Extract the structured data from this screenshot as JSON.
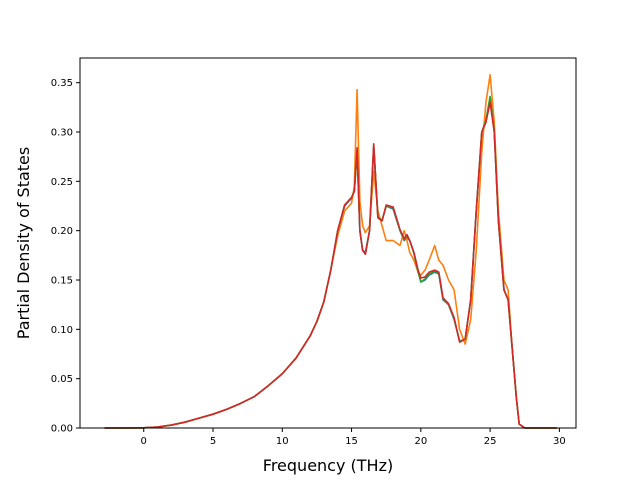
{
  "chart_data": {
    "type": "line",
    "title": "",
    "xlabel": "Frequency (THz)",
    "ylabel": "Partial Density of States",
    "xlim": [
      -4.6,
      31.2
    ],
    "ylim": [
      0.0,
      0.375
    ],
    "xticks": [
      0,
      5,
      10,
      15,
      20,
      25,
      30
    ],
    "xtick_labels": [
      "0",
      "5",
      "10",
      "15",
      "20",
      "25",
      "30"
    ],
    "yticks": [
      0.0,
      0.05,
      0.1,
      0.15,
      0.2,
      0.25,
      0.3,
      0.35
    ],
    "ytick_labels": [
      "0.00",
      "0.05",
      "0.10",
      "0.15",
      "0.20",
      "0.25",
      "0.30",
      "0.35"
    ],
    "grid": false,
    "legend": "none",
    "series": [
      {
        "color": "#1f77b4",
        "x": [
          -2.8,
          -1,
          0,
          1,
          2,
          3,
          4,
          5,
          6,
          7,
          8,
          9,
          10,
          11,
          12,
          12.5,
          13,
          13.5,
          14,
          14.5,
          15,
          15.2,
          15.4,
          15.6,
          15.8,
          16,
          16.3,
          16.6,
          16.9,
          17.2,
          17.5,
          18,
          18.5,
          18.8,
          19,
          19.2,
          19.5,
          19.8,
          20,
          20.3,
          20.6,
          21,
          21.3,
          21.6,
          22,
          22.4,
          22.8,
          23.2,
          23.6,
          24,
          24.4,
          24.7,
          25,
          25.3,
          25.6,
          26,
          26.3,
          26.6,
          26.9,
          27.1,
          27.5,
          28,
          29.8
        ],
        "values": [
          0.0,
          0.0,
          0.0002,
          0.001,
          0.003,
          0.006,
          0.01,
          0.014,
          0.019,
          0.025,
          0.032,
          0.043,
          0.055,
          0.071,
          0.093,
          0.108,
          0.128,
          0.16,
          0.2,
          0.225,
          0.233,
          0.24,
          0.28,
          0.2,
          0.18,
          0.178,
          0.2,
          0.285,
          0.215,
          0.21,
          0.225,
          0.222,
          0.2,
          0.19,
          0.193,
          0.19,
          0.178,
          0.16,
          0.148,
          0.15,
          0.155,
          0.158,
          0.156,
          0.13,
          0.125,
          0.11,
          0.088,
          0.09,
          0.13,
          0.22,
          0.3,
          0.31,
          0.335,
          0.3,
          0.21,
          0.14,
          0.13,
          0.08,
          0.03,
          0.004,
          0.0,
          0.0,
          0.0
        ]
      },
      {
        "color": "#ff7f0e",
        "x": [
          -2.8,
          -1,
          0,
          1,
          2,
          3,
          4,
          5,
          6,
          7,
          8,
          9,
          10,
          11,
          12,
          12.5,
          13,
          13.5,
          14,
          14.5,
          15,
          15.2,
          15.4,
          15.6,
          15.8,
          16,
          16.3,
          16.6,
          16.9,
          17.2,
          17.5,
          18,
          18.5,
          18.8,
          19,
          19.2,
          19.5,
          19.8,
          20,
          20.3,
          20.6,
          21,
          21.3,
          21.6,
          22,
          22.4,
          22.8,
          23.2,
          23.6,
          24,
          24.4,
          24.7,
          25,
          25.3,
          25.6,
          26,
          26.3,
          26.6,
          26.9,
          27.1,
          27.5,
          28,
          29.8
        ],
        "values": [
          0.0,
          0.0,
          0.0002,
          0.001,
          0.003,
          0.006,
          0.01,
          0.014,
          0.019,
          0.025,
          0.032,
          0.043,
          0.055,
          0.071,
          0.093,
          0.108,
          0.128,
          0.16,
          0.195,
          0.22,
          0.228,
          0.245,
          0.343,
          0.23,
          0.205,
          0.198,
          0.205,
          0.26,
          0.22,
          0.205,
          0.19,
          0.19,
          0.185,
          0.2,
          0.19,
          0.178,
          0.17,
          0.158,
          0.155,
          0.16,
          0.17,
          0.185,
          0.17,
          0.165,
          0.15,
          0.14,
          0.1,
          0.085,
          0.11,
          0.18,
          0.28,
          0.33,
          0.358,
          0.31,
          0.22,
          0.15,
          0.14,
          0.08,
          0.03,
          0.004,
          0.0,
          0.0,
          0.0
        ]
      },
      {
        "color": "#2ca02c",
        "x": [
          -2.8,
          -1,
          0,
          1,
          2,
          3,
          4,
          5,
          6,
          7,
          8,
          9,
          10,
          11,
          12,
          12.5,
          13,
          13.5,
          14,
          14.5,
          15,
          15.2,
          15.4,
          15.6,
          15.8,
          16,
          16.3,
          16.6,
          16.9,
          17.2,
          17.5,
          18,
          18.5,
          18.8,
          19,
          19.2,
          19.5,
          19.8,
          20,
          20.3,
          20.6,
          21,
          21.3,
          21.6,
          22,
          22.4,
          22.8,
          23.2,
          23.6,
          24,
          24.4,
          24.7,
          25,
          25.3,
          25.6,
          26,
          26.3,
          26.6,
          26.9,
          27.1,
          27.5,
          28,
          29.8
        ],
        "values": [
          0.0,
          0.0,
          0.0002,
          0.001,
          0.003,
          0.006,
          0.01,
          0.014,
          0.019,
          0.025,
          0.032,
          0.043,
          0.055,
          0.071,
          0.093,
          0.108,
          0.128,
          0.16,
          0.2,
          0.226,
          0.234,
          0.24,
          0.281,
          0.2,
          0.18,
          0.177,
          0.2,
          0.286,
          0.214,
          0.21,
          0.225,
          0.223,
          0.2,
          0.191,
          0.194,
          0.19,
          0.177,
          0.158,
          0.148,
          0.151,
          0.156,
          0.159,
          0.157,
          0.131,
          0.125,
          0.111,
          0.088,
          0.09,
          0.13,
          0.22,
          0.3,
          0.312,
          0.336,
          0.301,
          0.21,
          0.14,
          0.13,
          0.08,
          0.03,
          0.004,
          0.0,
          0.0,
          0.0
        ]
      },
      {
        "color": "#d62728",
        "x": [
          -2.8,
          -1,
          0,
          1,
          2,
          3,
          4,
          5,
          6,
          7,
          8,
          9,
          10,
          11,
          12,
          12.5,
          13,
          13.5,
          14,
          14.5,
          15,
          15.2,
          15.4,
          15.6,
          15.8,
          16,
          16.3,
          16.6,
          16.9,
          17.2,
          17.5,
          18,
          18.5,
          18.8,
          19,
          19.2,
          19.5,
          19.8,
          20,
          20.3,
          20.6,
          21,
          21.3,
          21.6,
          22,
          22.4,
          22.8,
          23.2,
          23.6,
          24,
          24.4,
          24.7,
          25,
          25.3,
          25.6,
          26,
          26.3,
          26.6,
          26.9,
          27.1,
          27.5,
          28,
          29.8
        ],
        "values": [
          0.0,
          0.0,
          0.0002,
          0.001,
          0.003,
          0.006,
          0.01,
          0.014,
          0.019,
          0.025,
          0.032,
          0.043,
          0.055,
          0.071,
          0.093,
          0.108,
          0.128,
          0.16,
          0.2,
          0.226,
          0.233,
          0.24,
          0.284,
          0.2,
          0.18,
          0.176,
          0.2,
          0.288,
          0.213,
          0.21,
          0.226,
          0.224,
          0.201,
          0.192,
          0.196,
          0.19,
          0.178,
          0.16,
          0.152,
          0.153,
          0.158,
          0.16,
          0.158,
          0.132,
          0.126,
          0.112,
          0.087,
          0.09,
          0.13,
          0.22,
          0.3,
          0.31,
          0.33,
          0.3,
          0.21,
          0.14,
          0.13,
          0.08,
          0.03,
          0.004,
          0.0,
          0.0,
          0.0
        ]
      }
    ]
  }
}
